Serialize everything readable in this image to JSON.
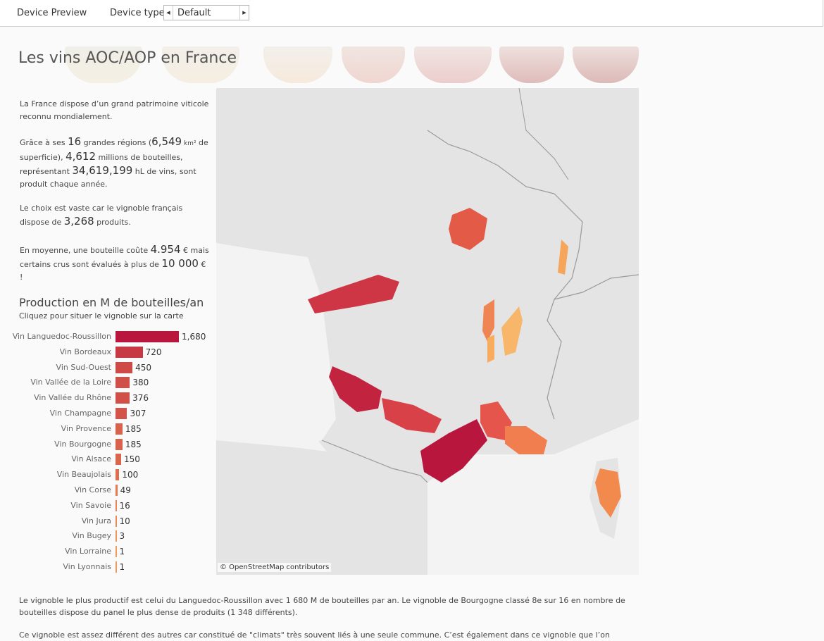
{
  "toolbar": {
    "device_preview_label": "Device Preview",
    "device_type_label": "Device type",
    "device_type_value": "Default"
  },
  "page": {
    "title": "Les vins AOC/AOP en France"
  },
  "intro": {
    "p1": "La France dispose d’un grand patrimoine viticole reconnu mondialement.",
    "p2_a": "Grâce à ses ",
    "p2_regions": "16",
    "p2_b": " grandes régions (",
    "p2_area": "6,549",
    "p2_unit": " km²",
    "p2_c": " de superficie), ",
    "p2_bottles": "4,612",
    "p2_d": " millions de bouteilles, représentant ",
    "p2_hl": "34,619,199",
    "p2_e": " hL de vins, sont produit chaque année.",
    "p3_a": "Le choix est vaste car le vignoble français dispose de ",
    "p3_products": "3,268",
    "p3_b": " produits.",
    "p4_a": "En moyenne, une bouteille coûte ",
    "p4_avg": "4.954",
    "p4_b": " € mais certains crus sont évalués à plus de ",
    "p4_max": "10 000",
    "p4_c": " € !"
  },
  "production": {
    "title": "Production en M de bouteilles/an",
    "subtitle": "Cliquez pour situer le vignoble sur la carte"
  },
  "chart_data": {
    "type": "bar",
    "orientation": "horizontal",
    "title": "Production en M de bouteilles/an",
    "categories": [
      "Vin Languedoc-Roussillon",
      "Vin Bordeaux",
      "Vin Sud-Ouest",
      "Vin Vallée de la Loire",
      "Vin Vallée du Rhône",
      "Vin Champagne",
      "Vin Provence",
      "Vin Bourgogne",
      "Vin Alsace",
      "Vin Beaujolais",
      "Vin Corse",
      "Vin Savoie",
      "Vin Jura",
      "Vin Bugey",
      "Vin Lorraine",
      "Vin Lyonnais"
    ],
    "values": [
      1680,
      720,
      450,
      380,
      376,
      307,
      185,
      185,
      150,
      100,
      49,
      16,
      10,
      3,
      1,
      1
    ],
    "value_labels": [
      "1,680",
      "720",
      "450",
      "380",
      "376",
      "307",
      "185",
      "185",
      "150",
      "100",
      "49",
      "16",
      "10",
      "3",
      "1",
      "1"
    ],
    "xlim": [
      0,
      1680
    ]
  },
  "colors": {
    "bar_high": "#b8163c",
    "bar_low": "#f4a35a",
    "land": "#e6e6e6",
    "sea": "#f5f5f5"
  },
  "map": {
    "attribution": "© OpenStreetMap contributors"
  },
  "footer": {
    "p1": "Le vignoble le plus productif est celui du Languedoc-Roussillon avec 1 680 M de bouteilles par an. Le vignoble de Bourgogne classé 8e sur 16 en nombre de bouteilles dispose du panel le plus dense de produits (1 348 différents).",
    "p2": "Ce vignoble est assez différent des autres car constitué de \"climats\" très souvent liés à une seule commune. C’est également dans ce vignoble que l’on"
  }
}
